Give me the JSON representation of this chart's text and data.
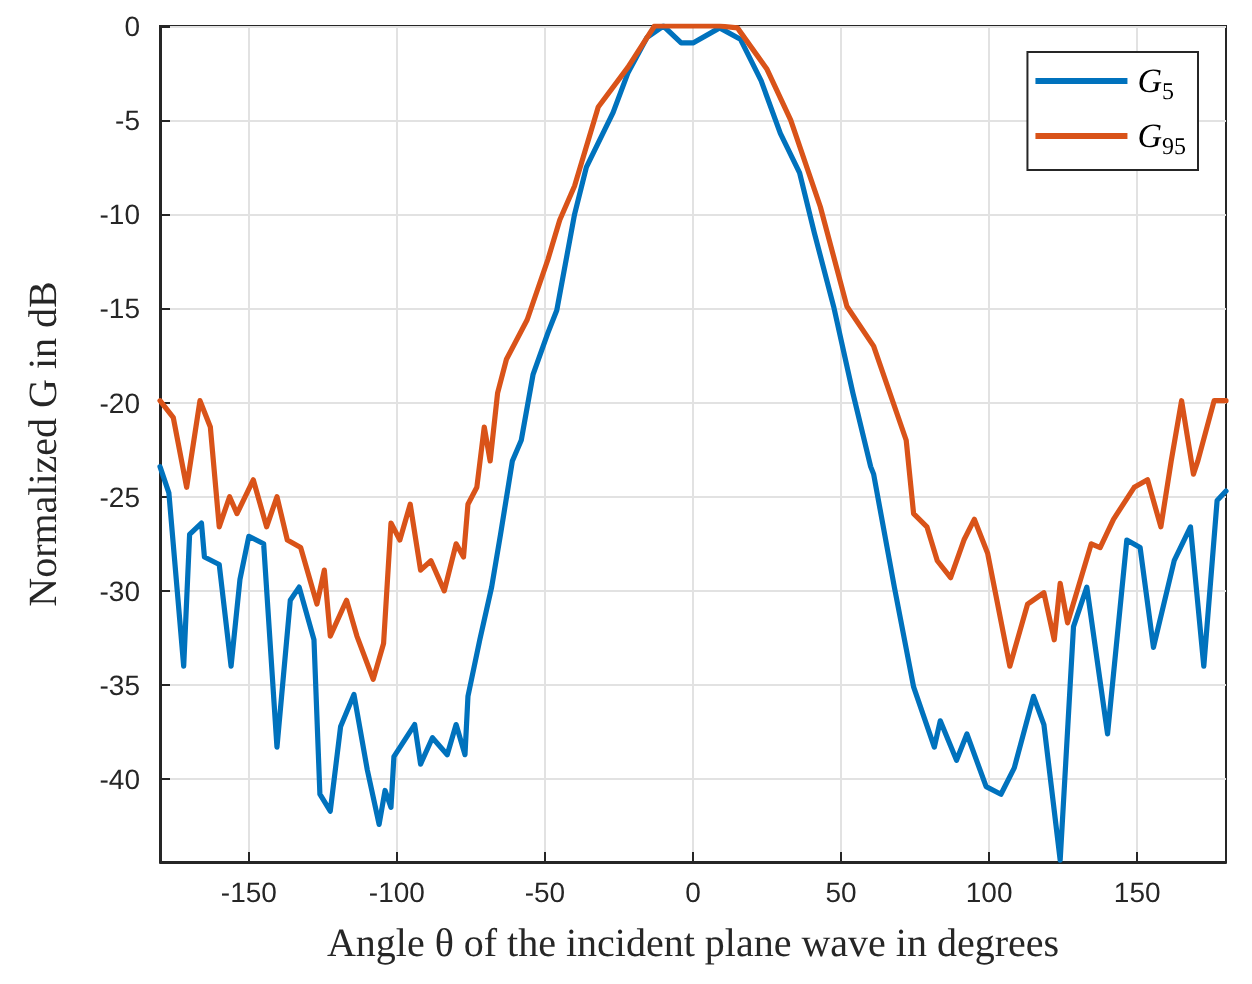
{
  "chart_data": {
    "type": "line",
    "xlabel": "Angle θ of the incident plane wave in degrees",
    "ylabel": "Normalized G in dB",
    "xlim": [
      -180,
      180
    ],
    "ylim": [
      -44.4,
      0
    ],
    "xticks": [
      -150,
      -100,
      -50,
      0,
      50,
      100,
      150
    ],
    "yticks": [
      0,
      -5,
      -10,
      -15,
      -20,
      -25,
      -30,
      -35,
      -40
    ],
    "grid": true,
    "legend": "top right",
    "marker": "none",
    "line_style": "solid",
    "series": [
      {
        "name": "G$_{5}$",
        "color": "#0072bd",
        "x": [
          -180,
          -177,
          -172,
          -170,
          -166,
          -165,
          -160,
          -156,
          -153,
          -150,
          -145,
          -140.5,
          -136,
          -133,
          -128,
          -126,
          -122.5,
          -119,
          -114.5,
          -110,
          -106,
          -104,
          -102,
          -101,
          -94,
          -92,
          -88,
          -83,
          -80,
          -77,
          -76,
          -72,
          -68,
          -65,
          -61,
          -58,
          -54,
          -49,
          -46,
          -40,
          -36,
          -27,
          -22,
          -15.5,
          -10,
          -4,
          0,
          9,
          16,
          23,
          29.5,
          36,
          41,
          47.5,
          54,
          60,
          61,
          68,
          74.5,
          81.5,
          83.5,
          89,
          92.5,
          99,
          104,
          108.5,
          115,
          118.5,
          124,
          128.5,
          133,
          140,
          146.5,
          151,
          155.5,
          162.5,
          168,
          172.5,
          177,
          180
        ],
        "values": [
          -23.4,
          -24.8,
          -34,
          -27,
          -26.4,
          -28.2,
          -28.6,
          -34,
          -29.4,
          -27.1,
          -27.5,
          -38.3,
          -30.5,
          -29.8,
          -32.6,
          -40.8,
          -41.7,
          -37.2,
          -35.5,
          -39.5,
          -42.4,
          -40.6,
          -41.5,
          -38.8,
          -37.1,
          -39.2,
          -37.8,
          -38.7,
          -37.1,
          -38.7,
          -35.6,
          -32.6,
          -29.8,
          -27,
          -23.1,
          -22,
          -18.5,
          -16.3,
          -15.1,
          -10,
          -7.5,
          -4.6,
          -2.5,
          -0.6,
          0,
          -0.9,
          -0.9,
          -0.1,
          -0.7,
          -2.9,
          -5.7,
          -7.8,
          -11,
          -14.9,
          -19.5,
          -23.4,
          -23.8,
          -29.8,
          -35.1,
          -38.3,
          -36.9,
          -39,
          -37.6,
          -40.4,
          -40.8,
          -39.4,
          -35.6,
          -37.1,
          -44.3,
          -31.9,
          -29.8,
          -37.6,
          -27.3,
          -27.7,
          -33,
          -28.4,
          -26.6,
          -34,
          -25.2,
          -24.7
        ]
      },
      {
        "name": "G$_{95}$",
        "color": "#d95319",
        "x": [
          -180,
          -175.5,
          -171,
          -166.5,
          -163,
          -160,
          -156.5,
          -154,
          -148.5,
          -144,
          -140.5,
          -137,
          -132.5,
          -127,
          -124.5,
          -122.5,
          -117,
          -113.5,
          -108,
          -104.5,
          -102,
          -99,
          -95.5,
          -92,
          -88.5,
          -84,
          -80,
          -77.5,
          -76,
          -73,
          -70.5,
          -68.5,
          -66,
          -63,
          -56,
          -49,
          -45,
          -40,
          -32,
          -22,
          -13,
          -2,
          9,
          15,
          25,
          33,
          43,
          52,
          61,
          72,
          74.5,
          79,
          82.5,
          87,
          91.5,
          95,
          99.5,
          107,
          113,
          118.5,
          122,
          124,
          126.5,
          134.5,
          137.5,
          142,
          149,
          153.5,
          158,
          161.5,
          165,
          169,
          170.5,
          176,
          180
        ],
        "values": [
          -19.9,
          -20.8,
          -24.5,
          -19.9,
          -21.3,
          -26.6,
          -25,
          -25.9,
          -24.1,
          -26.6,
          -25,
          -27.3,
          -27.7,
          -30.7,
          -28.9,
          -32.4,
          -30.5,
          -32.4,
          -34.7,
          -32.8,
          -26.4,
          -27.3,
          -25.4,
          -28.9,
          -28.4,
          -30,
          -27.5,
          -28.2,
          -25.4,
          -24.5,
          -21.3,
          -23.1,
          -19.5,
          -17.7,
          -15.6,
          -12.4,
          -10.3,
          -8.5,
          -4.3,
          -2.2,
          0,
          0,
          0,
          -0.1,
          -2.3,
          -5,
          -9.6,
          -14.9,
          -17,
          -22,
          -25.9,
          -26.6,
          -28.4,
          -29.3,
          -27.3,
          -26.2,
          -28,
          -34,
          -30.7,
          -30.1,
          -32.6,
          -29.6,
          -31.7,
          -27.5,
          -27.7,
          -26.2,
          -24.5,
          -24.1,
          -26.6,
          -23.1,
          -19.9,
          -23.8,
          -23.1,
          -19.9,
          -19.9
        ]
      }
    ]
  }
}
